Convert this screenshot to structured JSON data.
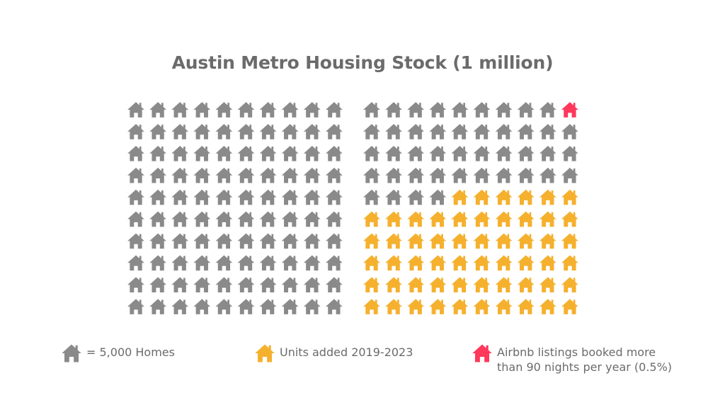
{
  "chart_data": {
    "type": "waffle",
    "title": "Austin Metro Housing Stock (1 million)",
    "unit_value": 5000,
    "grid": {
      "blocks": 2,
      "rows": 10,
      "cols": 10
    },
    "series": [
      {
        "name": "= 5,000 Homes",
        "count": 143,
        "color": "#8a8a8a"
      },
      {
        "name": "Units added 2019-2023",
        "count": 56,
        "color": "#f5b02e"
      },
      {
        "name": "Airbnb listings booked more than 90 nights per year (0.5%)",
        "count": 1,
        "color": "#ff385c"
      }
    ]
  },
  "legend": {
    "per_icon_label": "= 5,000 Homes",
    "added_label": "Units added 2019-2023",
    "airbnb_label": "Airbnb listings booked more than 90 nights per year (0.5%)"
  },
  "colors": {
    "existing": "#8a8a8a",
    "added": "#f5b02e",
    "airbnb": "#ff385c",
    "text": "#6b6b6b"
  },
  "icons": {
    "unit": "house-icon"
  }
}
